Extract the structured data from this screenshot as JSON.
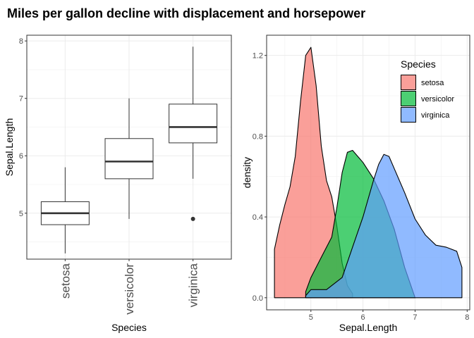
{
  "title": "Miles per gallon decline with displacement and horsepower",
  "chart_data": [
    {
      "type": "box",
      "xlabel": "Species",
      "ylabel": "Sepal.Length",
      "categories": [
        "setosa",
        "versicolor",
        "virginica"
      ],
      "ylim": [
        4.2,
        8.1
      ],
      "y_ticks": [
        5,
        6,
        7,
        8
      ],
      "grid": true,
      "boxes": [
        {
          "category": "setosa",
          "min": 4.3,
          "q1": 4.8,
          "median": 5.0,
          "q3": 5.2,
          "max": 5.8,
          "outliers": []
        },
        {
          "category": "versicolor",
          "min": 4.9,
          "q1": 5.6,
          "median": 5.9,
          "q3": 6.3,
          "max": 7.0,
          "outliers": []
        },
        {
          "category": "virginica",
          "min": 5.6,
          "q1": 6.225,
          "median": 6.5,
          "q3": 6.9,
          "max": 7.9,
          "outliers": [
            4.9
          ]
        }
      ]
    },
    {
      "type": "area",
      "xlabel": "Sepal.Length",
      "ylabel": "density",
      "xlim": [
        4.15,
        8.05
      ],
      "ylim": [
        -0.06,
        1.3
      ],
      "x_ticks": [
        5,
        6,
        7,
        8
      ],
      "y_ticks": [
        0.0,
        0.4,
        0.8,
        1.2
      ],
      "y_tick_labels": [
        "0.0",
        "0.4",
        "0.8",
        "1.2"
      ],
      "grid": true,
      "legend": {
        "title": "Species",
        "position": "top-right"
      },
      "series": [
        {
          "name": "setosa",
          "color": "#F8766D",
          "x": [
            4.3,
            4.4,
            4.5,
            4.6,
            4.7,
            4.8,
            4.9,
            5.0,
            5.1,
            5.2,
            5.3,
            5.4,
            5.5,
            5.6,
            5.7,
            5.8
          ],
          "y": [
            0.24,
            0.36,
            0.46,
            0.55,
            0.7,
            0.97,
            1.2,
            1.24,
            1.05,
            0.75,
            0.58,
            0.5,
            0.35,
            0.17,
            0.06,
            0.02
          ]
        },
        {
          "name": "versicolor",
          "color": "#00BA38",
          "x": [
            4.9,
            5.0,
            5.2,
            5.4,
            5.5,
            5.6,
            5.7,
            5.8,
            5.9,
            6.0,
            6.2,
            6.4,
            6.6,
            6.8,
            7.0
          ],
          "y": [
            0.03,
            0.1,
            0.2,
            0.3,
            0.45,
            0.62,
            0.72,
            0.73,
            0.7,
            0.67,
            0.59,
            0.48,
            0.34,
            0.15,
            0.0
          ]
        },
        {
          "name": "virginica",
          "color": "#619CFF",
          "x": [
            4.9,
            5.0,
            5.3,
            5.6,
            5.8,
            6.0,
            6.2,
            6.3,
            6.4,
            6.5,
            6.6,
            6.8,
            7.0,
            7.2,
            7.4,
            7.6,
            7.8,
            7.9
          ],
          "y": [
            0.01,
            0.04,
            0.04,
            0.1,
            0.25,
            0.4,
            0.58,
            0.66,
            0.71,
            0.7,
            0.64,
            0.52,
            0.39,
            0.31,
            0.26,
            0.25,
            0.23,
            0.15
          ]
        }
      ]
    }
  ]
}
